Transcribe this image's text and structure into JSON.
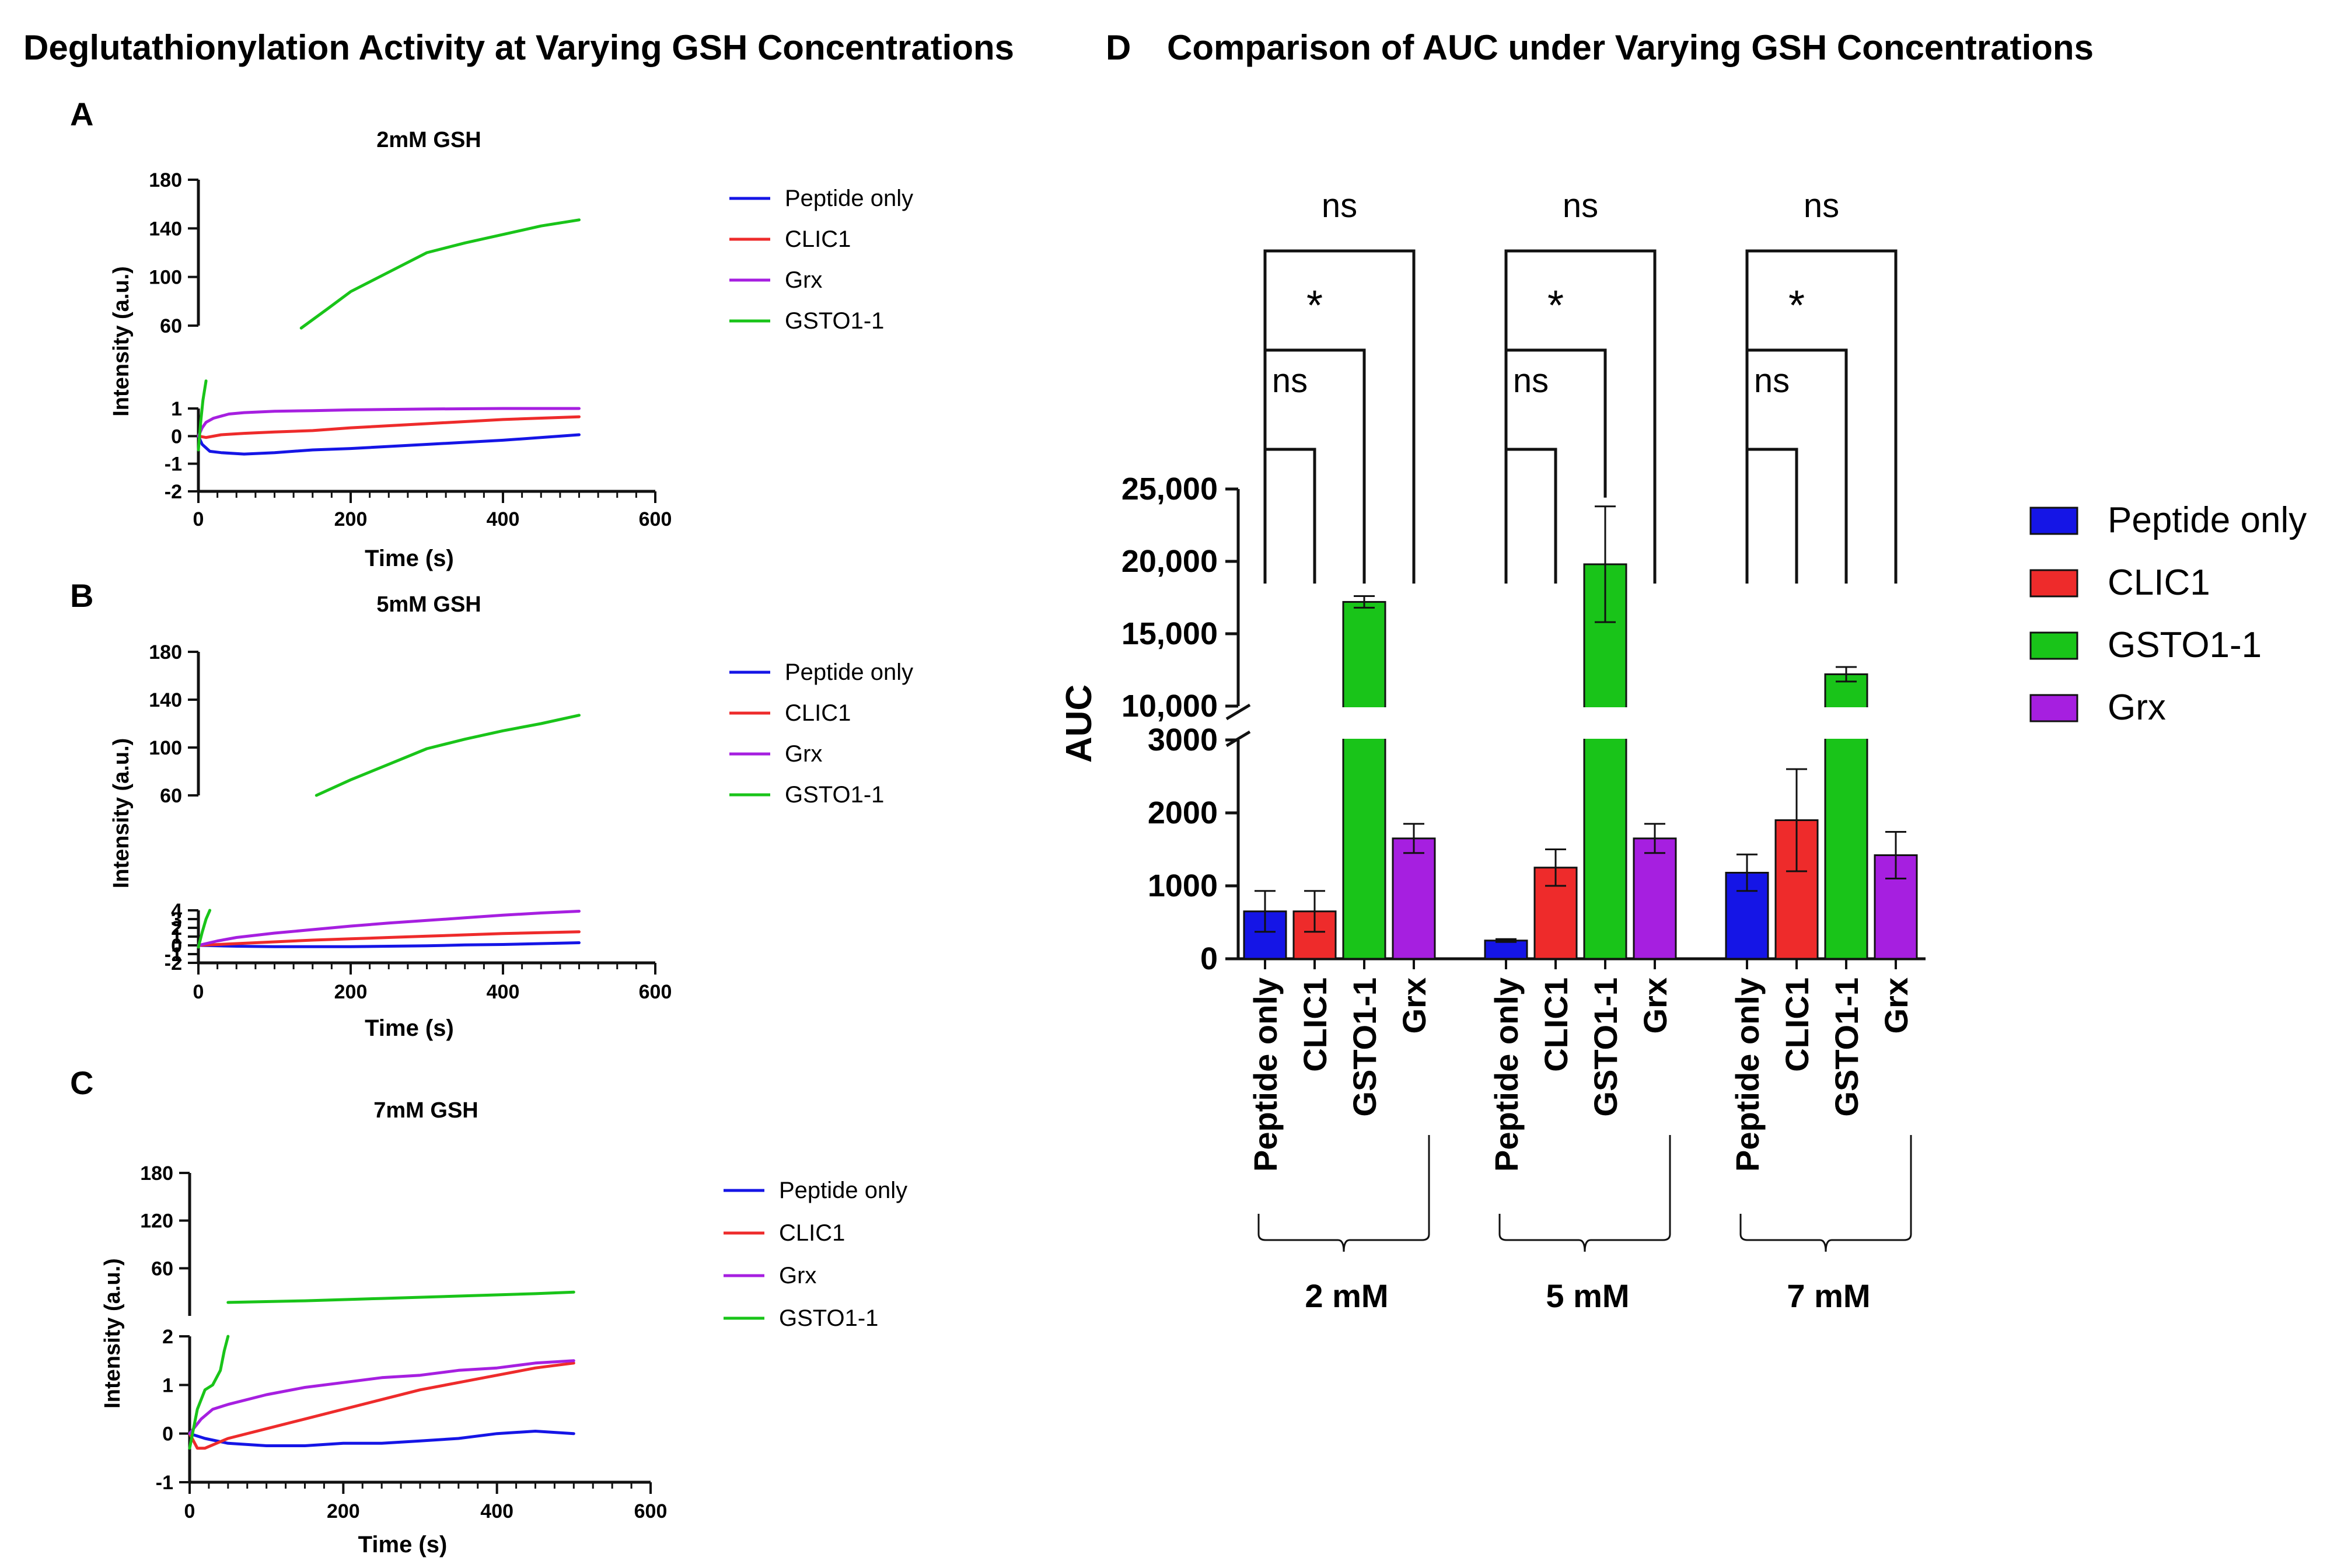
{
  "figure": {
    "left_title": "Deglutathionylation Activity at Varying GSH Concentrations",
    "right_title": "Comparison of AUC under Varying GSH Concentrations",
    "right_letter": "D"
  },
  "colors": {
    "peptide_only": "#1515e6",
    "clic1": "#ee2b2b",
    "gsto1_1": "#19c419",
    "grx": "#a61fe0"
  },
  "chart_data": [
    {
      "type": "line",
      "panel_letter": "A",
      "title": "2mM GSH",
      "xlabel": "Time (s)",
      "ylabel": "Intensity (a.u.)",
      "xlim": [
        0,
        600
      ],
      "x_ticks": [
        "0",
        "200",
        "400",
        "600"
      ],
      "y_broken_axis": true,
      "y_lower_range": [
        -2,
        1
      ],
      "y_lower_ticks": [
        "-2",
        "-1",
        "0",
        "1"
      ],
      "y_upper_range": [
        60,
        180
      ],
      "y_upper_ticks": [
        "60",
        "100",
        "140",
        "180"
      ],
      "legend": [
        "Peptide only",
        "CLIC1",
        "Grx",
        "GSTO1-1"
      ],
      "series": [
        {
          "name": "Peptide only",
          "color_key": "peptide_only",
          "segment": "lower",
          "x": [
            0,
            5,
            15,
            30,
            60,
            100,
            150,
            200,
            300,
            400,
            500
          ],
          "y": [
            0,
            -0.3,
            -0.55,
            -0.6,
            -0.65,
            -0.6,
            -0.5,
            -0.45,
            -0.3,
            -0.15,
            0.05
          ]
        },
        {
          "name": "CLIC1",
          "color_key": "clic1",
          "segment": "lower",
          "x": [
            0,
            10,
            30,
            60,
            100,
            150,
            200,
            300,
            400,
            500
          ],
          "y": [
            0,
            -0.05,
            0.05,
            0.1,
            0.15,
            0.2,
            0.3,
            0.45,
            0.6,
            0.7
          ]
        },
        {
          "name": "Grx",
          "color_key": "grx",
          "segment": "lower",
          "x": [
            0,
            5,
            10,
            20,
            40,
            60,
            100,
            150,
            200,
            300,
            400,
            500
          ],
          "y": [
            0,
            0.3,
            0.5,
            0.65,
            0.8,
            0.85,
            0.9,
            0.92,
            0.95,
            0.98,
            1.0,
            1.0
          ]
        },
        {
          "name": "GSTO1-1",
          "color_key": "gsto1_1",
          "segment": "lower",
          "x": [
            0,
            3,
            6,
            10
          ],
          "y": [
            -0.5,
            0.5,
            1.3,
            2.0
          ]
        },
        {
          "name": "GSTO1-1",
          "color_key": "gsto1_1",
          "segment": "upper",
          "x": [
            135,
            170,
            200,
            250,
            300,
            350,
            400,
            450,
            500
          ],
          "y": [
            58,
            74,
            88,
            104,
            120,
            128,
            135,
            142,
            147
          ]
        }
      ]
    },
    {
      "type": "line",
      "panel_letter": "B",
      "title": "5mM GSH",
      "xlabel": "Time (s)",
      "ylabel": "Intensity (a.u.)",
      "xlim": [
        0,
        600
      ],
      "x_ticks": [
        "0",
        "200",
        "400",
        "600"
      ],
      "y_broken_axis": true,
      "y_lower_range": [
        -2,
        4
      ],
      "y_lower_ticks": [
        "-2",
        "-1",
        "0",
        "1",
        "2",
        "3",
        "4"
      ],
      "y_upper_range": [
        60,
        180
      ],
      "y_upper_ticks": [
        "60",
        "100",
        "140",
        "180"
      ],
      "legend": [
        "Peptide only",
        "CLIC1",
        "Grx",
        "GSTO1-1"
      ],
      "series": [
        {
          "name": "Peptide only",
          "color_key": "peptide_only",
          "segment": "lower",
          "x": [
            0,
            50,
            100,
            150,
            200,
            250,
            300,
            350,
            400,
            450,
            500
          ],
          "y": [
            0,
            -0.1,
            -0.15,
            -0.15,
            -0.15,
            -0.1,
            -0.05,
            0.05,
            0.1,
            0.2,
            0.3
          ]
        },
        {
          "name": "CLIC1",
          "color_key": "clic1",
          "segment": "lower",
          "x": [
            0,
            50,
            100,
            150,
            200,
            250,
            300,
            350,
            400,
            450,
            500
          ],
          "y": [
            0,
            0.2,
            0.4,
            0.6,
            0.75,
            0.9,
            1.05,
            1.2,
            1.35,
            1.45,
            1.55
          ]
        },
        {
          "name": "Grx",
          "color_key": "grx",
          "segment": "lower",
          "x": [
            0,
            25,
            50,
            100,
            150,
            200,
            250,
            300,
            350,
            400,
            450,
            500
          ],
          "y": [
            0,
            0.5,
            0.9,
            1.4,
            1.8,
            2.2,
            2.55,
            2.85,
            3.15,
            3.45,
            3.7,
            3.9
          ]
        },
        {
          "name": "GSTO1-1",
          "color_key": "gsto1_1",
          "segment": "lower",
          "x": [
            0,
            5,
            10,
            15
          ],
          "y": [
            -0.2,
            1.5,
            3.0,
            4.0
          ]
        },
        {
          "name": "GSTO1-1",
          "color_key": "gsto1_1",
          "segment": "upper",
          "x": [
            155,
            200,
            250,
            300,
            350,
            400,
            450,
            500
          ],
          "y": [
            60,
            73,
            86,
            99,
            107,
            114,
            120,
            127
          ]
        }
      ]
    },
    {
      "type": "line",
      "panel_letter": "C",
      "title": "7mM GSH",
      "xlabel": "Time (s)",
      "ylabel": "Intensity (a.u.)",
      "xlim": [
        0,
        600
      ],
      "x_ticks": [
        "0",
        "200",
        "400",
        "600"
      ],
      "y_broken_axis": true,
      "y_lower_range": [
        -1,
        2
      ],
      "y_lower_ticks": [
        "-1",
        "0",
        "1",
        "2"
      ],
      "y_upper_range": [
        0,
        180
      ],
      "y_upper_ticks": [
        "60",
        "120",
        "180"
      ],
      "legend": [
        "Peptide only",
        "CLIC1",
        "Grx",
        "GSTO1-1"
      ],
      "series": [
        {
          "name": "Peptide only",
          "color_key": "peptide_only",
          "segment": "lower",
          "x": [
            0,
            20,
            50,
            100,
            150,
            200,
            250,
            300,
            350,
            400,
            450,
            500
          ],
          "y": [
            0,
            -0.1,
            -0.2,
            -0.25,
            -0.25,
            -0.2,
            -0.2,
            -0.15,
            -0.1,
            0,
            0.05,
            0.0
          ]
        },
        {
          "name": "CLIC1",
          "color_key": "clic1",
          "segment": "lower",
          "x": [
            0,
            10,
            20,
            50,
            100,
            150,
            200,
            250,
            300,
            350,
            400,
            450,
            500
          ],
          "y": [
            0,
            -0.3,
            -0.3,
            -0.1,
            0.1,
            0.3,
            0.5,
            0.7,
            0.9,
            1.05,
            1.2,
            1.35,
            1.45
          ]
        },
        {
          "name": "Grx",
          "color_key": "grx",
          "segment": "lower",
          "x": [
            0,
            15,
            30,
            50,
            100,
            150,
            200,
            250,
            300,
            350,
            400,
            450,
            500
          ],
          "y": [
            0,
            0.3,
            0.5,
            0.6,
            0.8,
            0.95,
            1.05,
            1.15,
            1.2,
            1.3,
            1.35,
            1.45,
            1.5
          ]
        },
        {
          "name": "GSTO1-1",
          "color_key": "gsto1_1",
          "segment": "lower",
          "x": [
            0,
            10,
            20,
            30,
            40,
            45,
            50
          ],
          "y": [
            -0.3,
            0.5,
            0.9,
            1.0,
            1.3,
            1.7,
            2.0
          ]
        },
        {
          "name": "GSTO1-1",
          "color_key": "gsto1_1",
          "segment": "upper",
          "x": [
            50,
            150,
            250,
            350,
            450,
            500
          ],
          "y": [
            17,
            19,
            22,
            25,
            28,
            30
          ]
        }
      ]
    },
    {
      "type": "bar",
      "panel_letter": "D",
      "title": "Comparison of AUC under Varying GSH Concentrations",
      "ylabel": "AUC",
      "y_broken_axis": true,
      "y_lower_range": [
        0,
        3000
      ],
      "y_lower_ticks": [
        "0",
        "1000",
        "2000",
        "3000"
      ],
      "y_upper_range": [
        10000,
        25000
      ],
      "y_upper_ticks": [
        "10,000",
        "15,000",
        "20,000",
        "25,000"
      ],
      "categories": [
        "Peptide only",
        "CLIC1",
        "GSTO1-1",
        "Grx"
      ],
      "groups": [
        {
          "label": "2 mM",
          "values": [
            650,
            650,
            17200,
            1650
          ],
          "errors": [
            280,
            280,
            400,
            200
          ]
        },
        {
          "label": "5 mM",
          "values": [
            250,
            1250,
            19800,
            1650
          ],
          "errors": [
            20,
            250,
            4000,
            200
          ]
        },
        {
          "label": "7 mM",
          "values": [
            1180,
            1900,
            12200,
            1420
          ],
          "errors": [
            250,
            700,
            500,
            320
          ]
        }
      ],
      "significance": [
        {
          "compare": [
            "Peptide only",
            "CLIC1"
          ],
          "label": "ns"
        },
        {
          "compare": [
            "Peptide only",
            "GSTO1-1"
          ],
          "label": "*"
        },
        {
          "compare": [
            "Peptide only",
            "Grx"
          ],
          "label": "ns"
        }
      ],
      "legend": [
        "Peptide only",
        "CLIC1",
        "GSTO1-1",
        "Grx"
      ],
      "legend_position": "right"
    }
  ]
}
